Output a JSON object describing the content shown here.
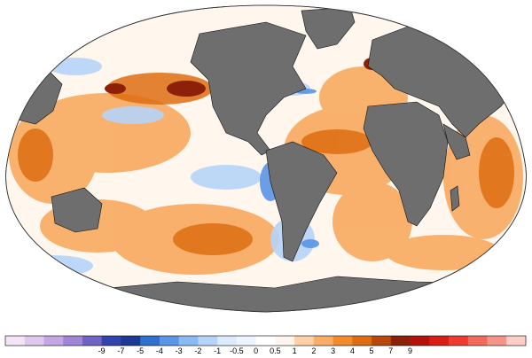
{
  "map": {
    "projection": "robinson-like world map",
    "land_color": "#6e6e6e",
    "ocean_neutral_color": "#ffffff",
    "border_color": "#111111"
  },
  "colorbar": {
    "bins": [
      {
        "color": "#f3e5f5"
      },
      {
        "color": "#ddc8ee"
      },
      {
        "color": "#c3a6e3"
      },
      {
        "color": "#9f86d6"
      },
      {
        "color": "#6f63c6"
      },
      {
        "color": "#3143ad"
      },
      {
        "color": "#1c3a94"
      },
      {
        "color": "#2f6fcf"
      },
      {
        "color": "#5a95e6"
      },
      {
        "color": "#8bb9f1"
      },
      {
        "color": "#b6d4f8"
      },
      {
        "color": "#dcebfd"
      },
      {
        "color": "#eef5fe"
      },
      {
        "color": "#ffffff"
      },
      {
        "color": "#fff5ee"
      },
      {
        "color": "#fdd0a6"
      },
      {
        "color": "#f9ad67"
      },
      {
        "color": "#f28c2a"
      },
      {
        "color": "#dd6d10"
      },
      {
        "color": "#b9490a"
      },
      {
        "color": "#8c2008"
      },
      {
        "color": "#b5120b"
      },
      {
        "color": "#d91e13"
      },
      {
        "color": "#ef3a2e"
      },
      {
        "color": "#f26a5c"
      },
      {
        "color": "#f59588"
      },
      {
        "color": "#fbcfc6"
      }
    ],
    "tick_labels": [
      "-9",
      "-7",
      "-5",
      "-4",
      "-3",
      "-2",
      "-1",
      "-0.5",
      "0",
      "0.5",
      "1",
      "2",
      "3",
      "4",
      "5",
      "7",
      "9"
    ]
  }
}
